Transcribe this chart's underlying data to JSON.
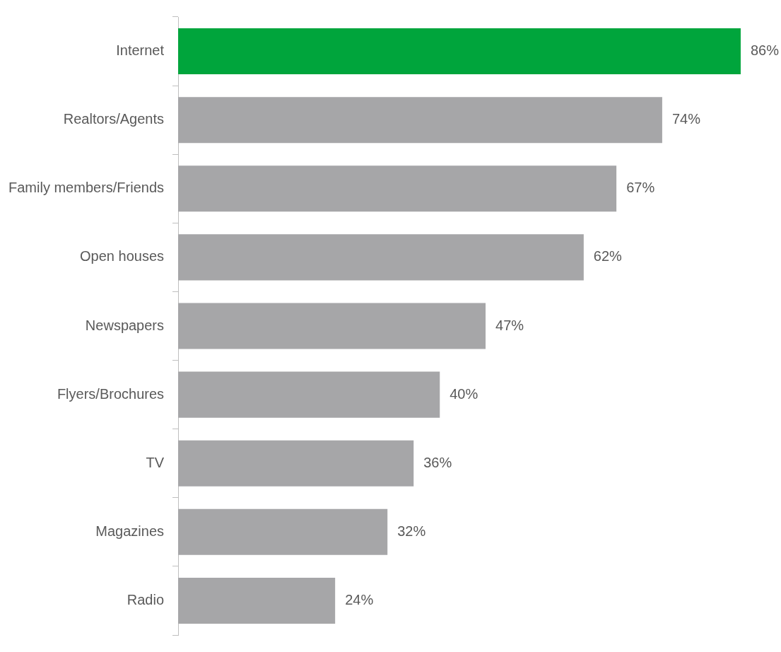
{
  "chart_data": {
    "type": "bar",
    "orientation": "horizontal",
    "categories": [
      "Internet",
      "Realtors/Agents",
      "Family members/Friends",
      "Open houses",
      "Newspapers",
      "Flyers/Brochures",
      "TV",
      "Magazines",
      "Radio"
    ],
    "values": [
      86,
      74,
      67,
      62,
      47,
      40,
      36,
      32,
      24
    ],
    "value_labels": [
      "86%",
      "74%",
      "67%",
      "62%",
      "47%",
      "40%",
      "36%",
      "32%",
      "24%"
    ],
    "colors": [
      "#00a53c",
      "#a6a6a8",
      "#a6a6a8",
      "#a6a6a8",
      "#a6a6a8",
      "#a6a6a8",
      "#a6a6a8",
      "#a6a6a8",
      "#a6a6a8"
    ]
  }
}
